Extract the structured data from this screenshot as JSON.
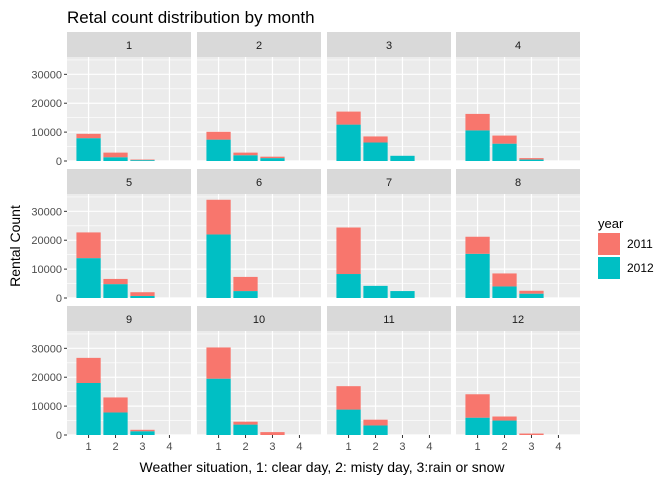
{
  "chart_data": {
    "type": "bar",
    "title": "Retal count distribution by month",
    "xlabel": "Weather situation, 1: clear day, 2: misty day, 3:rain or snow",
    "ylabel": "Rental Count",
    "x_categories": [
      "1",
      "2",
      "3",
      "4"
    ],
    "y_ticks": [
      0,
      10000,
      20000,
      30000
    ],
    "y_tick_labels": [
      "0",
      "10000",
      "20000",
      "30000"
    ],
    "ylim": [
      0,
      36000
    ],
    "stacked": true,
    "legend": {
      "title": "year",
      "position": "right",
      "entries": [
        {
          "name": "2011",
          "color": "#F8766D"
        },
        {
          "name": "2012",
          "color": "#00BFC4"
        }
      ]
    },
    "grid": true,
    "panels": [
      {
        "label": "1",
        "values_2012": [
          7900,
          1300,
          300,
          0
        ],
        "values_2011": [
          1500,
          1600,
          200,
          0
        ]
      },
      {
        "label": "2",
        "values_2012": [
          7400,
          2000,
          1000,
          0
        ],
        "values_2011": [
          2700,
          900,
          500,
          0
        ]
      },
      {
        "label": "3",
        "values_2012": [
          12600,
          6400,
          1800,
          0
        ],
        "values_2011": [
          4500,
          2100,
          0,
          0
        ]
      },
      {
        "label": "4",
        "values_2012": [
          10600,
          6000,
          500,
          0
        ],
        "values_2011": [
          5700,
          2800,
          500,
          0
        ]
      },
      {
        "label": "5",
        "values_2012": [
          13800,
          4800,
          700,
          0
        ],
        "values_2011": [
          8900,
          1800,
          1300,
          0
        ]
      },
      {
        "label": "6",
        "values_2012": [
          22000,
          2400,
          0,
          0
        ],
        "values_2011": [
          12000,
          4900,
          0,
          0
        ]
      },
      {
        "label": "7",
        "values_2012": [
          8300,
          4200,
          2400,
          0
        ],
        "values_2011": [
          16100,
          0,
          0,
          0
        ]
      },
      {
        "label": "8",
        "values_2012": [
          15300,
          4000,
          1500,
          0
        ],
        "values_2011": [
          5900,
          4500,
          1000,
          0
        ]
      },
      {
        "label": "9",
        "values_2012": [
          18000,
          7800,
          1300,
          0
        ],
        "values_2011": [
          8700,
          5200,
          500,
          0
        ]
      },
      {
        "label": "10",
        "values_2012": [
          19500,
          3600,
          0,
          0
        ],
        "values_2011": [
          10800,
          1000,
          1000,
          0
        ]
      },
      {
        "label": "11",
        "values_2012": [
          8800,
          3300,
          0,
          0
        ],
        "values_2011": [
          8100,
          2000,
          0,
          0
        ]
      },
      {
        "label": "12",
        "values_2012": [
          6000,
          5000,
          0,
          0
        ],
        "values_2011": [
          8100,
          1400,
          500,
          0
        ]
      }
    ]
  }
}
